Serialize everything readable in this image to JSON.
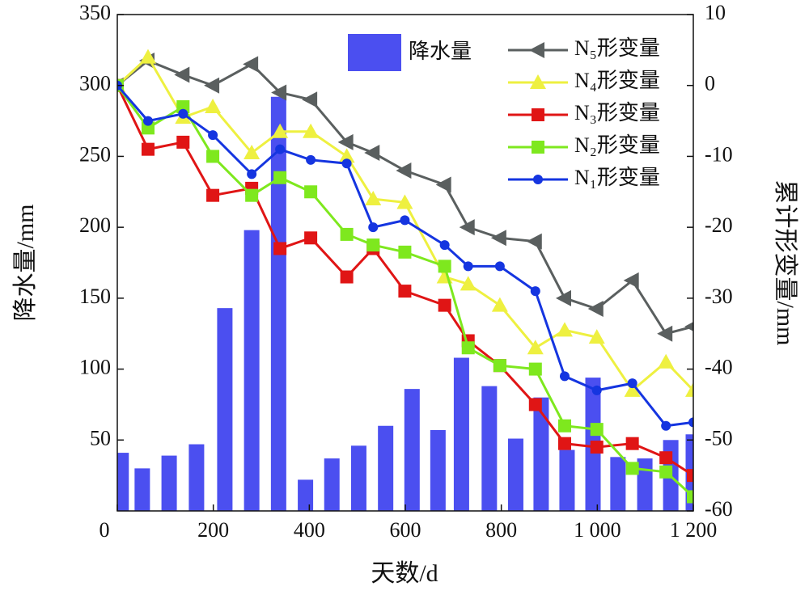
{
  "chart_data": {
    "type": "combo",
    "xlabel": "天数/d",
    "ylabel": "降水量/mm",
    "y2label": "累计形变量/mm",
    "xlim": [
      0,
      1200
    ],
    "xticks": [
      0,
      200,
      400,
      600,
      800,
      {
        "value": 1000,
        "label": "1 000"
      },
      {
        "value": 1200,
        "label": "1 200"
      }
    ],
    "ylim": [
      0,
      350
    ],
    "yticks": [
      50,
      100,
      150,
      200,
      250,
      300,
      350
    ],
    "y2lim": [
      -60,
      10
    ],
    "y2ticks": [
      -60,
      -50,
      -40,
      -30,
      -20,
      -10,
      0,
      10
    ],
    "legend": "upper right",
    "bars": {
      "name": "降水量",
      "type": "bar",
      "color": "#4b4ff0",
      "x": [
        8,
        52,
        108,
        165,
        224,
        280,
        336,
        392,
        447,
        503,
        559,
        614,
        668,
        717,
        775,
        830,
        883,
        937,
        991,
        1043,
        1099,
        1153,
        1200
      ],
      "values": [
        41,
        30,
        39,
        47,
        143,
        198,
        292,
        22,
        37,
        46,
        60,
        86,
        57,
        108,
        88,
        51,
        80,
        43,
        94,
        38,
        37,
        50,
        54
      ]
    },
    "x": [
      0,
      64,
      137,
      199,
      280,
      339,
      403,
      478,
      533,
      599,
      682,
      731,
      797,
      871,
      932,
      999,
      1073,
      1143,
      1200
    ],
    "series": [
      {
        "name": "N₅形变量",
        "type": "line",
        "axis": "y2",
        "color": "#5a5f5f",
        "marker": "triangle-left",
        "values": [
          0,
          3.5,
          1.5,
          0,
          3,
          -1,
          -2,
          -8,
          -9.5,
          -12,
          -14,
          -20,
          -21.5,
          -22,
          -30,
          -31.5,
          -27.5,
          -35,
          -34
        ]
      },
      {
        "name": "N₄形变量",
        "type": "line",
        "axis": "y2",
        "color": "#eef040",
        "marker": "triangle",
        "values": [
          0,
          4,
          -4.5,
          -3,
          -9.5,
          -6.5,
          -6.5,
          -10,
          -16,
          -16.5,
          -27,
          -28,
          -31,
          -37,
          -34.5,
          -35.5,
          -43,
          -39,
          -43
        ]
      },
      {
        "name": "N₃形变量",
        "type": "line",
        "axis": "y2",
        "color": "#e01515",
        "marker": "square",
        "values": [
          0,
          -9,
          -8,
          -15.5,
          -14.5,
          -23,
          -21.5,
          -27,
          -23,
          -29,
          -31,
          -36,
          -39.5,
          -45,
          -50.5,
          -51,
          -50.5,
          -52.5,
          -55
        ]
      },
      {
        "name": "N₂形变量",
        "type": "line",
        "axis": "y2",
        "color": "#7ee81e",
        "marker": "square",
        "values": [
          0,
          -6,
          -3,
          -10,
          -15.5,
          -13,
          -15,
          -21,
          -22.5,
          -23.5,
          -25.5,
          -37,
          -39.5,
          -40,
          -48,
          -48.5,
          -54,
          -54.5,
          -58
        ]
      },
      {
        "name": "N₁形变量",
        "type": "line",
        "axis": "y2",
        "color": "#1535e0",
        "marker": "circle",
        "values": [
          0,
          -5,
          -4,
          -7,
          -12.5,
          -9,
          -10.5,
          -11,
          -20,
          -19,
          -22.5,
          -25.5,
          -25.5,
          -29,
          -41,
          -43,
          -42,
          -48,
          -47.5
        ]
      }
    ]
  }
}
